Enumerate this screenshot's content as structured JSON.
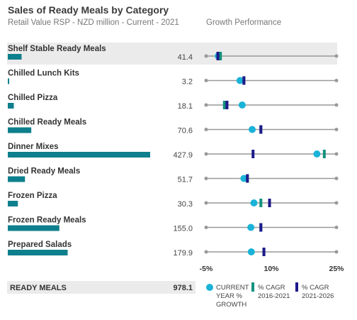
{
  "title": "Sales of Ready Meals by Category",
  "subtitle": "Retail Value RSP - NZD million - Current - 2021",
  "growth_header": "Growth Performance",
  "colors": {
    "bar": "#0e7f8c",
    "current_growth": "#1ab3d8",
    "cagr_2016_2021": "#14917f",
    "cagr_2021_2026": "#1d1a8a",
    "row_band": "#ebebeb",
    "axis_line": "#999999"
  },
  "chart_data": {
    "type": "bar",
    "title": "Sales of Ready Meals by Category",
    "subtitle": "Retail Value RSP - NZD million - Current - 2021",
    "categories": [
      "Shelf Stable Ready Meals",
      "Chilled Lunch Kits",
      "Chilled Pizza",
      "Chilled Ready Meals",
      "Dinner Mixes",
      "Dried Ready Meals",
      "Frozen Pizza",
      "Frozen Ready Meals",
      "Prepared Salads"
    ],
    "values": [
      41.4,
      3.2,
      18.1,
      70.6,
      427.9,
      51.7,
      30.3,
      155.0,
      179.9
    ],
    "value_labels": [
      "41.4",
      "3.2",
      "18.1",
      "70.6",
      "427.9",
      "51.7",
      "30.3",
      "155.0",
      "179.9"
    ],
    "total": {
      "label": "READY MEALS",
      "value": 978.1,
      "value_label": "978.1"
    },
    "growth": {
      "title": "Growth Performance",
      "xlim": [
        -5,
        25
      ],
      "ticks": [
        -5,
        10,
        25
      ],
      "tick_labels": [
        "-5%",
        "10%",
        "25%"
      ],
      "series": [
        {
          "name": "CURRENT YEAR % GROWTH",
          "marker": "circle",
          "values": [
            -2.2,
            2.8,
            3.3,
            5.6,
            20.5,
            3.7,
            6.0,
            5.3,
            5.4
          ]
        },
        {
          "name": "% CAGR 2016-2021",
          "marker": "bar",
          "values": [
            -1.7,
            3.7,
            -0.8,
            7.6,
            22.2,
            4.5,
            7.6,
            7.6,
            8.3
          ]
        },
        {
          "name": "% CAGR 2021-2026",
          "marker": "bar",
          "values": [
            -2.3,
            3.7,
            -0.2,
            7.6,
            5.8,
            4.5,
            9.6,
            7.6,
            8.3
          ]
        }
      ]
    }
  }
}
